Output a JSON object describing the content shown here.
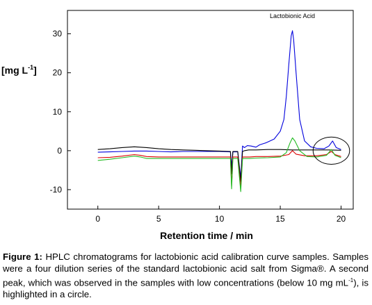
{
  "chart_data": {
    "type": "line",
    "title": "",
    "xlabel": "Retention time / min",
    "ylabel": "[mg L-1]",
    "ylabel_base": "[mg L",
    "ylabel_sup": "-1",
    "ylabel_close": "]",
    "xlim": [
      -2.5,
      21
    ],
    "ylim": [
      -15,
      36
    ],
    "x_ticks": [
      0,
      5,
      10,
      15,
      20
    ],
    "y_ticks": [
      -10,
      0,
      10,
      20,
      30
    ],
    "grid": false,
    "legend": "none",
    "annotations": [
      {
        "text": "Lactobionic Acid",
        "x": 16,
        "y": 34
      }
    ],
    "highlight_circle": {
      "cx": 19.2,
      "cy": 0,
      "rx": 1.5,
      "ry": 3.5
    },
    "series": [
      {
        "color": "#0000dd",
        "x": [
          0,
          1,
          2,
          3,
          4,
          5,
          6,
          7,
          8,
          9,
          10,
          10.9,
          11.0,
          11.1,
          11.3,
          11.5,
          11.75,
          11.9,
          12.05,
          12.3,
          12.6,
          13,
          13.3,
          13.8,
          14.5,
          15.0,
          15.3,
          15.5,
          15.7,
          15.9,
          16.0,
          16.1,
          16.3,
          16.6,
          17.0,
          17.5,
          18.0,
          18.6,
          19.0,
          19.3,
          19.6,
          20.0
        ],
        "y": [
          -0.4,
          -0.3,
          -0.2,
          -0.1,
          -0.1,
          -0.2,
          -0.3,
          -0.2,
          -0.2,
          -0.2,
          -0.2,
          -0.3,
          -4.0,
          -0.3,
          -0.3,
          -0.3,
          -7.0,
          1.2,
          0.8,
          1.3,
          1.2,
          0.9,
          1.5,
          2.0,
          3.0,
          5.0,
          8.0,
          14.0,
          22.0,
          29.5,
          30.8,
          28.5,
          20.0,
          8.0,
          2.5,
          1.0,
          0.6,
          0.5,
          1.2,
          2.5,
          0.8,
          0.3
        ]
      },
      {
        "color": "#000000",
        "x": [
          0,
          1,
          2,
          3,
          4,
          5,
          6,
          7,
          8,
          9,
          10,
          10.9,
          11.0,
          11.1,
          11.3,
          11.5,
          11.75,
          11.9,
          12.05,
          12.4,
          13,
          14,
          15,
          16,
          17,
          18,
          19,
          20
        ],
        "y": [
          0.3,
          0.5,
          0.8,
          1.0,
          0.8,
          0.5,
          0.3,
          0.2,
          0.1,
          0.0,
          -0.1,
          -0.2,
          -6.0,
          -0.2,
          -0.2,
          -0.2,
          -8.0,
          -0.2,
          0.0,
          0.2,
          0.2,
          0.3,
          0.3,
          0.2,
          0.2,
          0.2,
          0.2,
          0.1
        ]
      },
      {
        "color": "#dd0000",
        "x": [
          0,
          1,
          2,
          3,
          3.5,
          4,
          5,
          6,
          7,
          8,
          9,
          10,
          10.9,
          11.0,
          11.1,
          11.3,
          11.5,
          11.75,
          11.9,
          12.05,
          12.5,
          13,
          14,
          15,
          15.7,
          16.0,
          16.3,
          17,
          18,
          18.8,
          19.2,
          19.5,
          20.0
        ],
        "y": [
          -1.8,
          -1.7,
          -1.4,
          -1.0,
          -1.2,
          -1.5,
          -1.6,
          -1.6,
          -1.6,
          -1.6,
          -1.6,
          -1.6,
          -1.6,
          -9.0,
          -1.6,
          -1.6,
          -1.6,
          -9.5,
          -1.6,
          -1.6,
          -1.6,
          -1.5,
          -1.5,
          -1.4,
          -1.0,
          0.0,
          -0.9,
          -1.3,
          -1.3,
          -1.0,
          -0.2,
          -1.0,
          -1.5
        ]
      },
      {
        "color": "#22bb22",
        "x": [
          0,
          1,
          2,
          3,
          3.5,
          4,
          5,
          6,
          7,
          8,
          9,
          10,
          10.9,
          11.0,
          11.1,
          11.3,
          11.5,
          11.75,
          11.9,
          12.05,
          12.5,
          13,
          14,
          15,
          15.5,
          15.8,
          16.0,
          16.2,
          16.6,
          17.2,
          18,
          18.8,
          19.2,
          19.5,
          20.0
        ],
        "y": [
          -2.5,
          -2.2,
          -1.8,
          -1.4,
          -1.6,
          -2.0,
          -2.0,
          -2.0,
          -2.0,
          -2.0,
          -2.0,
          -2.0,
          -2.0,
          -9.8,
          -2.0,
          -2.0,
          -2.0,
          -10.5,
          -2.0,
          -2.0,
          -2.0,
          -1.9,
          -1.8,
          -1.6,
          -0.5,
          2.0,
          3.3,
          2.5,
          0.0,
          -1.5,
          -1.6,
          -1.2,
          0.3,
          -1.2,
          -1.8
        ]
      }
    ]
  },
  "caption": {
    "label": "Figure 1:",
    "text": " HPLC chromatograms for lactobionic acid calibration curve samples. Samples were a four dilution series of the standard lactobionic acid salt from Sigma®. A second peak, which was observed in the samples with low concentrations (below 10 mg mL",
    "sup": "-1",
    "tail": "), is highlighted in a circle."
  }
}
